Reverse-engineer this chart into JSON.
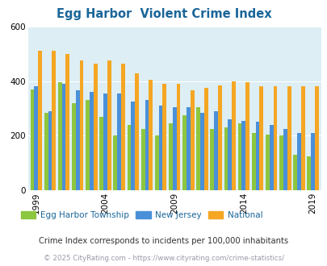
{
  "title": "Egg Harbor  Violent Crime Index",
  "years": [
    1999,
    2000,
    2001,
    2002,
    2003,
    2004,
    2005,
    2006,
    2007,
    2008,
    2009,
    2010,
    2011,
    2012,
    2013,
    2014,
    2019
  ],
  "egg_harbor_vals": [
    370,
    285,
    395,
    320,
    330,
    270,
    200,
    240,
    225,
    200,
    245,
    275,
    305,
    225,
    230,
    245,
    210,
    205,
    200,
    130,
    125
  ],
  "new_jersey_vals": [
    380,
    290,
    390,
    365,
    360,
    355,
    355,
    325,
    330,
    310,
    305,
    305,
    285,
    290,
    260,
    255,
    250,
    240,
    225,
    210,
    210
  ],
  "national_vals": [
    510,
    510,
    500,
    475,
    465,
    475,
    465,
    430,
    405,
    390,
    390,
    365,
    375,
    385,
    400,
    395,
    380,
    380,
    380,
    380,
    380
  ],
  "all_years": [
    1999,
    2000,
    2001,
    2002,
    2003,
    2004,
    2005,
    2006,
    2007,
    2008,
    2009,
    2010,
    2011,
    2012,
    2013,
    2014,
    2015,
    2016,
    2017,
    2018,
    2019
  ],
  "egg_harbor_color": "#8dc63f",
  "new_jersey_color": "#4a90d9",
  "national_color": "#f5a623",
  "bg_color": "#ddeef5",
  "ylim": [
    0,
    600
  ],
  "yticks": [
    0,
    200,
    400,
    600
  ],
  "xlabel_ticks": [
    1999,
    2004,
    2009,
    2014,
    2019
  ],
  "legend_labels": [
    "Egg Harbor Township",
    "New Jersey",
    "National"
  ],
  "subtitle": "Crime Index corresponds to incidents per 100,000 inhabitants",
  "footer": "© 2025 CityRating.com - https://www.cityrating.com/crime-statistics/",
  "title_color": "#1a6699",
  "subtitle_color": "#333333",
  "footer_color": "#9999aa"
}
